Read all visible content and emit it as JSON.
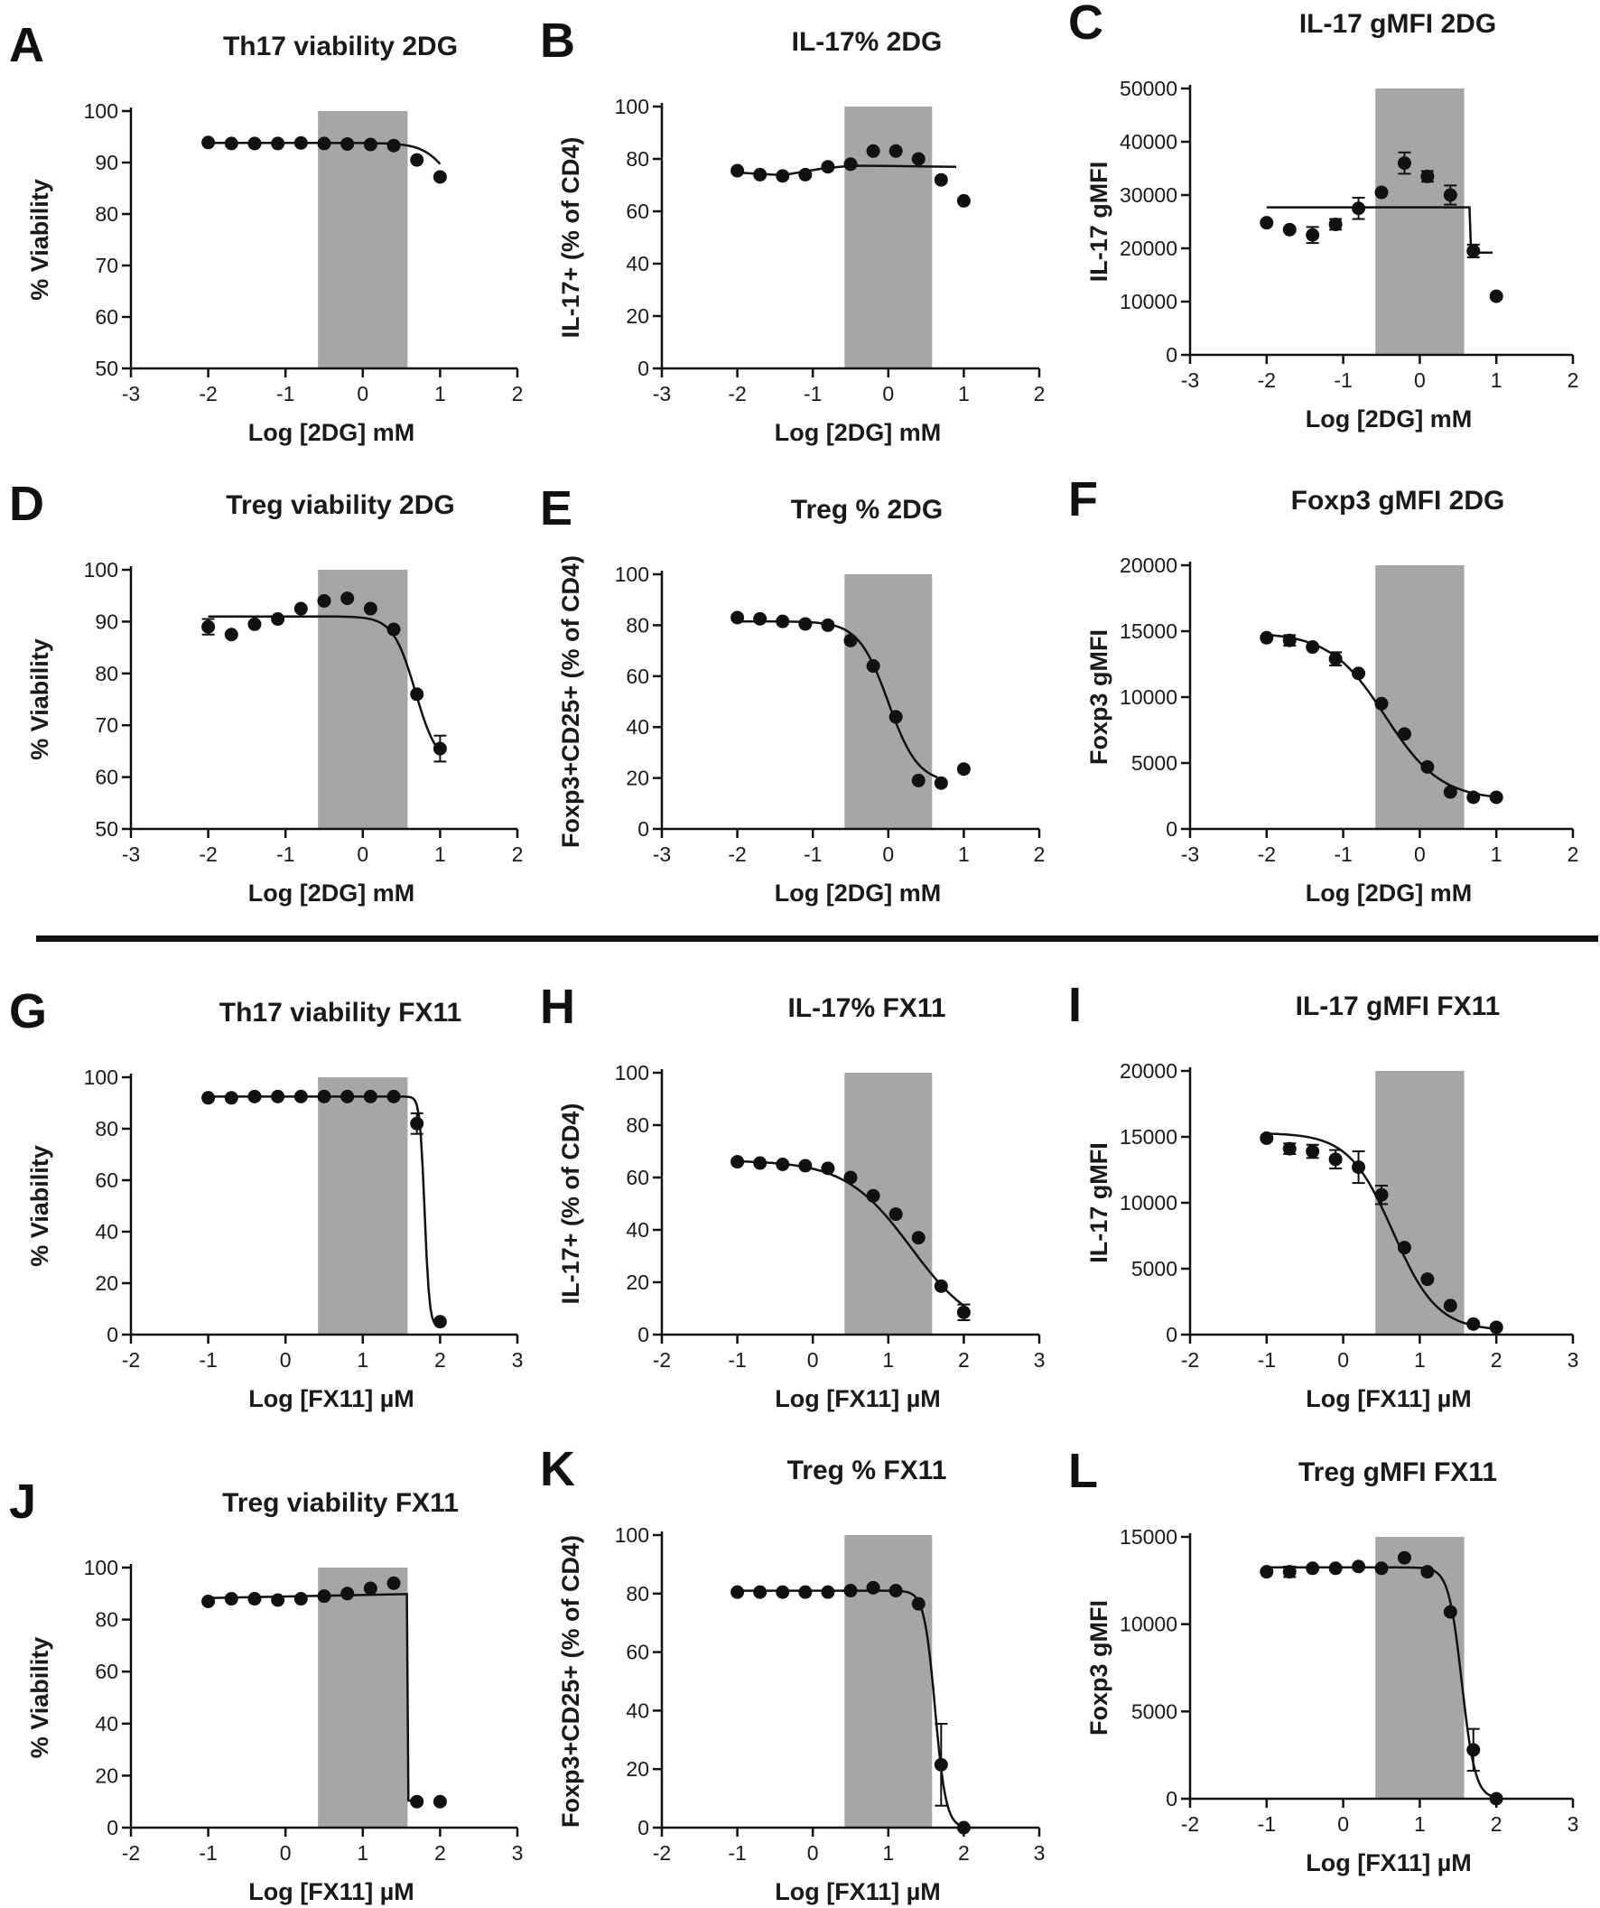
{
  "figure_separator": true,
  "colors": {
    "ink": "#111111",
    "shade": "#a6a6a6"
  },
  "chart_data": [
    {
      "letter": "A",
      "title": "Th17 viability 2DG",
      "type": "scatter",
      "xlabel": "Log [2DG] mM",
      "ylabel": "% Viability",
      "xlim": [
        -3,
        2
      ],
      "xticks": [
        "-3",
        "-2",
        "-1",
        "0",
        "1",
        "2"
      ],
      "ylim": [
        50,
        100
      ],
      "yticks": [
        "50",
        "60",
        "70",
        "80",
        "90",
        "100"
      ],
      "shade": [
        -0.58,
        0.58
      ],
      "x": [
        -2,
        -1.7,
        -1.4,
        -1.1,
        -0.8,
        -0.5,
        -0.2,
        0.1,
        0.4,
        0.7,
        1.0
      ],
      "y": [
        93.9,
        93.7,
        93.7,
        93.7,
        93.8,
        93.7,
        93.6,
        93.5,
        93.3,
        90.5,
        87.2
      ],
      "err": [
        0,
        0,
        0,
        0,
        0,
        0,
        0,
        0,
        0,
        0,
        0
      ],
      "fit": {
        "kind": "sigmoid",
        "top": 93.8,
        "bottom": 80,
        "ec50": 1.15,
        "hill": 2.5
      }
    },
    {
      "letter": "B",
      "title": "IL-17% 2DG",
      "type": "scatter",
      "xlabel": "Log [2DG] mM",
      "ylabel": "IL-17+ (% of CD4)",
      "xlim": [
        -3,
        2
      ],
      "xticks": [
        "-3",
        "-2",
        "-1",
        "0",
        "1",
        "2"
      ],
      "ylim": [
        0,
        100
      ],
      "yticks": [
        "0",
        "20",
        "40",
        "60",
        "80",
        "100"
      ],
      "shade": [
        -0.58,
        0.58
      ],
      "x": [
        -2,
        -1.7,
        -1.4,
        -1.1,
        -0.8,
        -0.5,
        -0.2,
        0.1,
        0.4,
        0.7,
        1.0
      ],
      "y": [
        75.5,
        74,
        73.5,
        74,
        77,
        78,
        83,
        83,
        80,
        72,
        64
      ],
      "err": [
        0,
        0,
        0,
        0,
        0,
        0,
        0,
        0,
        0,
        0,
        0
      ],
      "fit": {
        "kind": "line",
        "points": [
          [
            -2,
            74.8
          ],
          [
            -1.4,
            73.8
          ],
          [
            -0.9,
            76.2
          ],
          [
            -0.5,
            77.4
          ],
          [
            0,
            77.3
          ],
          [
            0.5,
            77.1
          ],
          [
            0.9,
            77.0
          ]
        ]
      }
    },
    {
      "letter": "C",
      "title": "IL-17 gMFI 2DG",
      "type": "scatter",
      "xlabel": "Log [2DG] mM",
      "ylabel": "IL-17 gMFI",
      "xlim": [
        -3,
        2
      ],
      "xticks": [
        "-3",
        "-2",
        "-1",
        "0",
        "1",
        "2"
      ],
      "ylim": [
        0,
        50000
      ],
      "yticks": [
        "0",
        "10000",
        "20000",
        "30000",
        "40000",
        "50000"
      ],
      "shade": [
        -0.58,
        0.58
      ],
      "x": [
        -2,
        -1.7,
        -1.4,
        -1.1,
        -0.8,
        -0.5,
        -0.2,
        0.1,
        0.4,
        0.7,
        1.0
      ],
      "y": [
        24800,
        23500,
        22500,
        24500,
        27500,
        30500,
        36000,
        33500,
        30000,
        19500,
        11000
      ],
      "err": [
        0,
        0,
        1500,
        1000,
        2000,
        0,
        2000,
        1000,
        1800,
        1200,
        0
      ],
      "fit": {
        "kind": "line",
        "points": [
          [
            -2,
            27700
          ],
          [
            0.65,
            27700
          ],
          [
            0.67,
            19200
          ],
          [
            0.95,
            19200
          ]
        ]
      }
    },
    {
      "letter": "D",
      "title": "Treg viability 2DG",
      "type": "scatter",
      "xlabel": "Log [2DG] mM",
      "ylabel": "% Viability",
      "xlim": [
        -3,
        2
      ],
      "xticks": [
        "-3",
        "-2",
        "-1",
        "0",
        "1",
        "2"
      ],
      "ylim": [
        50,
        100
      ],
      "yticks": [
        "50",
        "60",
        "70",
        "80",
        "90",
        "100"
      ],
      "shade": [
        -0.58,
        0.58
      ],
      "x": [
        -2,
        -1.7,
        -1.4,
        -1.1,
        -0.8,
        -0.5,
        -0.2,
        0.1,
        0.4,
        0.7,
        1.0
      ],
      "y": [
        89,
        87.5,
        89.5,
        90.5,
        92.5,
        94,
        94.5,
        92.5,
        88.5,
        76,
        65.5
      ],
      "err": [
        1.5,
        0,
        0,
        0,
        0,
        0,
        0,
        0,
        0,
        0,
        2.5
      ],
      "fit": {
        "kind": "sigmoid",
        "top": 91,
        "bottom": 62,
        "ec50": 0.68,
        "hill": 3
      }
    },
    {
      "letter": "E",
      "title": "Treg % 2DG",
      "type": "scatter",
      "xlabel": "Log [2DG] mM",
      "ylabel": "Foxp3+CD25+ (% of CD4)",
      "xlim": [
        -3,
        2
      ],
      "xticks": [
        "-3",
        "-2",
        "-1",
        "0",
        "1",
        "2"
      ],
      "ylim": [
        0,
        100
      ],
      "yticks": [
        "0",
        "20",
        "40",
        "60",
        "80",
        "100"
      ],
      "shade": [
        -0.58,
        0.58
      ],
      "x": [
        -2,
        -1.7,
        -1.4,
        -1.1,
        -0.8,
        -0.5,
        -0.2,
        0.1,
        0.4,
        0.7,
        1.0
      ],
      "y": [
        83,
        82.5,
        81.5,
        80.5,
        80,
        74,
        64,
        44,
        19,
        18,
        23.5
      ],
      "err": [
        0,
        0,
        0,
        0,
        0,
        0,
        0,
        0,
        0,
        0,
        0
      ],
      "fit": {
        "kind": "sigmoid",
        "top": 81.5,
        "bottom": 18,
        "ec50": 0.0,
        "hill": 2.2,
        "xmax": 0.65
      }
    },
    {
      "letter": "F",
      "title": "Foxp3 gMFI 2DG",
      "type": "scatter",
      "xlabel": "Log [2DG] mM",
      "ylabel": "Foxp3 gMFI",
      "xlim": [
        -3,
        2
      ],
      "xticks": [
        "-3",
        "-2",
        "-1",
        "0",
        "1",
        "2"
      ],
      "ylim": [
        0,
        20000
      ],
      "yticks": [
        "0",
        "5000",
        "10000",
        "15000",
        "20000"
      ],
      "shade": [
        -0.58,
        0.58
      ],
      "x": [
        -2,
        -1.7,
        -1.4,
        -1.1,
        -0.8,
        -0.5,
        -0.2,
        0.1,
        0.4,
        0.7,
        1.0
      ],
      "y": [
        14500,
        14300,
        13800,
        12900,
        11800,
        9500,
        7200,
        4700,
        2800,
        2400,
        2400
      ],
      "err": [
        0,
        400,
        0,
        500,
        0,
        0,
        0,
        0,
        0,
        0,
        0
      ],
      "fit": {
        "kind": "sigmoid",
        "top": 14900,
        "bottom": 2200,
        "ec50": -0.45,
        "hill": 1.2
      }
    },
    {
      "letter": "G",
      "title": "Th17 viability FX11",
      "type": "scatter",
      "xlabel": "Log [FX11] µM",
      "ylabel": "% Viability",
      "xlim": [
        -2,
        3
      ],
      "xticks": [
        "-2",
        "-1",
        "0",
        "1",
        "2",
        "3"
      ],
      "ylim": [
        0,
        100
      ],
      "yticks": [
        "0",
        "20",
        "40",
        "60",
        "80",
        "100"
      ],
      "shade": [
        0.42,
        1.58
      ],
      "x": [
        -1,
        -0.7,
        -0.4,
        -0.1,
        0.2,
        0.5,
        0.8,
        1.1,
        1.4,
        1.7,
        2.0
      ],
      "y": [
        92,
        92,
        92.5,
        92.5,
        92.5,
        92.5,
        92.5,
        92.5,
        92.5,
        82,
        5
      ],
      "err": [
        0,
        0,
        0,
        0,
        0,
        0,
        0,
        0,
        0,
        4,
        0
      ],
      "fit": {
        "kind": "sigmoid",
        "top": 92.5,
        "bottom": 3,
        "ec50": 1.8,
        "hill": 14
      }
    },
    {
      "letter": "H",
      "title": "IL-17% FX11",
      "type": "scatter",
      "xlabel": "Log [FX11] µM",
      "ylabel": "IL-17+ (% of CD4)",
      "xlim": [
        -2,
        3
      ],
      "xticks": [
        "-2",
        "-1",
        "0",
        "1",
        "2",
        "3"
      ],
      "ylim": [
        0,
        100
      ],
      "yticks": [
        "0",
        "20",
        "40",
        "60",
        "80",
        "100"
      ],
      "shade": [
        0.42,
        1.58
      ],
      "x": [
        -1,
        -0.7,
        -0.4,
        -0.1,
        0.2,
        0.5,
        0.8,
        1.1,
        1.4,
        1.7,
        2.0
      ],
      "y": [
        66,
        65.5,
        65,
        64.5,
        63.5,
        60,
        53,
        46,
        37,
        18.5,
        8.5
      ],
      "err": [
        0,
        0,
        0,
        0,
        0,
        0,
        0,
        0,
        0,
        0,
        3
      ],
      "fit": {
        "kind": "sigmoid",
        "top": 66.5,
        "bottom": 0,
        "ec50": 1.3,
        "hill": 1.0
      }
    },
    {
      "letter": "I",
      "title": "IL-17 gMFI FX11",
      "type": "scatter",
      "xlabel": "Log [FX11] µM",
      "ylabel": "IL-17 gMFI",
      "xlim": [
        -2,
        3
      ],
      "xticks": [
        "-2",
        "-1",
        "0",
        "1",
        "2",
        "3"
      ],
      "ylim": [
        0,
        20000
      ],
      "yticks": [
        "0",
        "5000",
        "10000",
        "15000",
        "20000"
      ],
      "shade": [
        0.42,
        1.58
      ],
      "x": [
        -1,
        -0.7,
        -0.4,
        -0.1,
        0.2,
        0.5,
        0.8,
        1.1,
        1.4,
        1.7,
        2.0
      ],
      "y": [
        14900,
        14100,
        13900,
        13300,
        12700,
        10600,
        6600,
        4200,
        2200,
        800,
        550
      ],
      "err": [
        0,
        400,
        500,
        700,
        1200,
        700,
        0,
        0,
        0,
        0,
        0
      ],
      "fit": {
        "kind": "sigmoid",
        "top": 15300,
        "bottom": 300,
        "ec50": 0.65,
        "hill": 1.5
      }
    },
    {
      "letter": "J",
      "title": "Treg viability FX11",
      "type": "scatter",
      "xlabel": "Log [FX11] µM",
      "ylabel": "% Viability",
      "xlim": [
        -2,
        3
      ],
      "xticks": [
        "-2",
        "-1",
        "0",
        "1",
        "2",
        "3"
      ],
      "ylim": [
        0,
        100
      ],
      "yticks": [
        "0",
        "20",
        "40",
        "60",
        "80",
        "100"
      ],
      "shade": [
        0.42,
        1.58
      ],
      "x": [
        -1,
        -0.7,
        -0.4,
        -0.1,
        0.2,
        0.5,
        0.8,
        1.1,
        1.4,
        1.7,
        2.0
      ],
      "y": [
        87,
        88,
        88,
        87.5,
        88,
        89,
        90,
        92,
        94,
        10,
        10
      ],
      "err": [
        0,
        0,
        0,
        0,
        0,
        0,
        0,
        0,
        0,
        0,
        0
      ],
      "fit": {
        "kind": "line",
        "points": [
          [
            -1,
            88.3
          ],
          [
            1.55,
            89.8
          ],
          [
            1.57,
            89.8
          ],
          [
            1.59,
            10.4
          ],
          [
            1.7,
            10.2
          ]
        ]
      }
    },
    {
      "letter": "K",
      "title": "Treg % FX11",
      "type": "scatter",
      "xlabel": "Log [FX11] µM",
      "ylabel": "Foxp3+CD25+ (% of CD4)",
      "xlim": [
        -2,
        3
      ],
      "xticks": [
        "-2",
        "-1",
        "0",
        "1",
        "2",
        "3"
      ],
      "ylim": [
        0,
        100
      ],
      "yticks": [
        "0",
        "20",
        "40",
        "60",
        "80",
        "100"
      ],
      "shade": [
        0.42,
        1.58
      ],
      "x": [
        -1,
        -0.7,
        -0.4,
        -0.1,
        0.2,
        0.5,
        0.8,
        1.1,
        1.4,
        1.7,
        2.0
      ],
      "y": [
        80.5,
        80.5,
        80.5,
        80.5,
        80.5,
        81,
        82,
        81,
        76.5,
        21.5,
        0
      ],
      "err": [
        0,
        0,
        0,
        0,
        0,
        0,
        0,
        0,
        0,
        14,
        0
      ],
      "fit": {
        "kind": "sigmoid",
        "top": 81,
        "bottom": 0,
        "ec50": 1.62,
        "hill": 6
      }
    },
    {
      "letter": "L",
      "title": "Treg gMFI FX11",
      "type": "scatter",
      "xlabel": "Log [FX11] µM",
      "ylabel": "Foxp3 gMFI",
      "xlim": [
        -2,
        3
      ],
      "xticks": [
        "-2",
        "-1",
        "0",
        "1",
        "2",
        "3"
      ],
      "ylim": [
        0,
        15000
      ],
      "yticks": [
        "0",
        "5000",
        "10000",
        "15000"
      ],
      "shade": [
        0.42,
        1.58
      ],
      "x": [
        -1,
        -0.7,
        -0.4,
        -0.1,
        0.2,
        0.5,
        0.8,
        1.1,
        1.4,
        1.7,
        2.0
      ],
      "y": [
        13000,
        13000,
        13200,
        13200,
        13300,
        13200,
        13800,
        13000,
        10700,
        2800,
        0
      ],
      "err": [
        0,
        300,
        0,
        0,
        0,
        0,
        0,
        0,
        0,
        1200,
        0
      ],
      "fit": {
        "kind": "sigmoid",
        "top": 13250,
        "bottom": 0,
        "ec50": 1.55,
        "hill": 5
      }
    }
  ]
}
